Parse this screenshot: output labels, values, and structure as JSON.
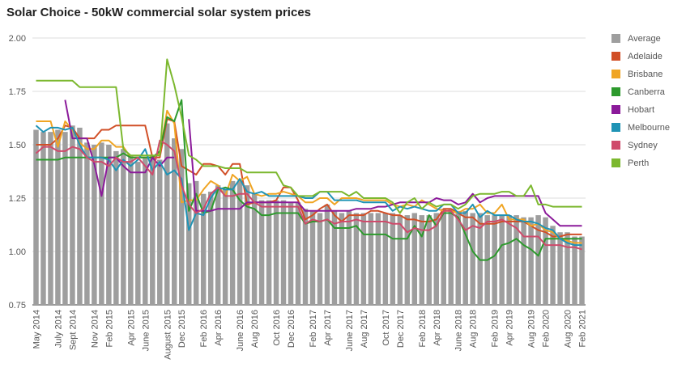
{
  "chart_data": {
    "type": "bar+line",
    "title": "Solar Choice - 50kW commercial solar system prices",
    "xlabel": "",
    "ylabel": "",
    "ylim": [
      0.75,
      2.0
    ],
    "yticks": [
      "0.75",
      "1.00",
      "1.25",
      "1.50",
      "1.75",
      "2.00"
    ],
    "grid": true,
    "legend_position": "right",
    "tick_labels": [
      "May 2014",
      "July 2014",
      "Sept 2014",
      "Nov 2014",
      "Feb 2015",
      "Apr 2015",
      "June 2015",
      "August 2015",
      "Dec 2015",
      "Feb 2016",
      "Apr 2016",
      "June 2016",
      "Aug 2016",
      "Oct 2016",
      "Dec 2016",
      "Feb 2017",
      "Apr 2017",
      "June 2017",
      "Aug 2017",
      "Oct 2017",
      "Dec 2017",
      "Feb 2018",
      "Apr 2018",
      "June 2018",
      "Aug 2018",
      "Feb 2019",
      "Apr 2019",
      "Aug 2019",
      "Feb 2020",
      "Aug 2020",
      "Feb 2021"
    ],
    "n_periods": 76,
    "series": [
      {
        "name": "Average",
        "kind": "bar",
        "color": "#9e9e9e",
        "values": [
          1.57,
          1.56,
          1.56,
          1.57,
          1.56,
          1.59,
          1.58,
          1.51,
          1.5,
          1.51,
          1.5,
          1.47,
          1.48,
          1.45,
          1.42,
          1.44,
          1.45,
          1.43,
          1.6,
          1.53,
          1.48,
          1.32,
          1.33,
          1.27,
          1.28,
          1.31,
          1.29,
          1.33,
          1.33,
          1.31,
          1.27,
          1.24,
          1.24,
          1.24,
          1.24,
          1.23,
          1.23,
          1.2,
          1.19,
          1.18,
          1.22,
          1.19,
          1.18,
          1.19,
          1.18,
          1.18,
          1.18,
          1.18,
          1.18,
          1.18,
          1.17,
          1.17,
          1.18,
          1.17,
          1.17,
          1.18,
          1.2,
          1.2,
          1.19,
          1.19,
          1.18,
          1.18,
          1.17,
          1.17,
          1.17,
          1.17,
          1.17,
          1.16,
          1.16,
          1.17,
          1.16,
          1.12,
          1.09,
          1.09,
          1.07,
          1.07
        ]
      },
      {
        "name": "Adelaide",
        "kind": "line",
        "color": "#d14f27",
        "values": [
          1.5,
          1.5,
          1.5,
          1.53,
          1.59,
          1.58,
          1.53,
          1.53,
          1.53,
          1.57,
          1.57,
          1.59,
          1.59,
          1.59,
          1.59,
          1.59,
          1.44,
          1.44,
          1.62,
          1.61,
          1.4,
          1.38,
          1.36,
          1.41,
          1.41,
          1.4,
          1.36,
          1.41,
          1.41,
          1.22,
          1.23,
          1.23,
          1.23,
          1.24,
          1.3,
          1.3,
          1.24,
          1.15,
          1.17,
          1.2,
          1.22,
          1.17,
          1.14,
          1.17,
          1.17,
          1.17,
          1.19,
          1.19,
          1.18,
          1.17,
          1.17,
          1.15,
          1.15,
          1.14,
          1.14,
          1.15,
          1.2,
          1.2,
          1.18,
          1.16,
          1.16,
          1.13,
          1.13,
          1.13,
          1.14,
          1.14,
          1.14,
          1.14,
          1.12,
          1.1,
          1.09,
          1.07,
          1.07,
          1.08,
          1.08,
          1.08
        ]
      },
      {
        "name": "Brisbane",
        "kind": "line",
        "color": "#f0a524",
        "values": [
          1.61,
          1.61,
          1.61,
          1.49,
          1.61,
          1.57,
          1.51,
          1.48,
          1.48,
          1.52,
          1.52,
          1.49,
          1.49,
          1.44,
          1.44,
          1.44,
          1.44,
          1.46,
          1.66,
          1.6,
          1.23,
          1.24,
          1.24,
          1.29,
          1.33,
          1.31,
          1.26,
          1.36,
          1.33,
          1.35,
          1.27,
          1.26,
          1.27,
          1.27,
          1.28,
          1.27,
          1.26,
          1.23,
          1.23,
          1.25,
          1.25,
          1.22,
          1.25,
          1.25,
          1.25,
          1.24,
          1.24,
          1.24,
          1.24,
          1.22,
          1.21,
          1.22,
          1.21,
          1.24,
          1.22,
          1.2,
          1.19,
          1.19,
          1.18,
          1.2,
          1.2,
          1.22,
          1.18,
          1.18,
          1.22,
          1.15,
          1.15,
          1.15,
          1.12,
          1.13,
          1.1,
          1.09,
          1.06,
          1.05,
          1.04,
          1.04
        ]
      },
      {
        "name": "Canberra",
        "kind": "line",
        "color": "#2d9a2d",
        "values": [
          1.43,
          1.43,
          1.43,
          1.43,
          1.44,
          1.44,
          1.44,
          1.44,
          1.44,
          1.44,
          1.44,
          1.44,
          1.46,
          1.44,
          1.44,
          1.44,
          1.44,
          1.47,
          1.63,
          1.61,
          1.71,
          1.19,
          1.27,
          1.18,
          1.19,
          1.29,
          1.3,
          1.29,
          1.24,
          1.21,
          1.2,
          1.17,
          1.17,
          1.18,
          1.18,
          1.18,
          1.18,
          1.13,
          1.14,
          1.14,
          1.15,
          1.11,
          1.11,
          1.11,
          1.12,
          1.08,
          1.08,
          1.08,
          1.08,
          1.06,
          1.06,
          1.06,
          1.12,
          1.07,
          1.17,
          1.12,
          1.18,
          1.18,
          1.16,
          1.08,
          1.0,
          0.96,
          0.96,
          0.98,
          1.03,
          1.04,
          1.06,
          1.03,
          1.01,
          0.98,
          1.06,
          1.06,
          1.06,
          1.06,
          1.06,
          1.06
        ]
      },
      {
        "name": "Hobart",
        "kind": "line",
        "color": "#8b1a9a",
        "values": [
          null,
          null,
          null,
          null,
          1.71,
          1.53,
          1.53,
          1.53,
          1.41,
          1.26,
          1.44,
          1.44,
          1.4,
          1.37,
          1.37,
          1.37,
          1.44,
          1.4,
          1.44,
          1.44,
          null,
          1.62,
          1.19,
          1.19,
          1.19,
          1.2,
          1.2,
          1.2,
          1.2,
          1.23,
          1.23,
          1.23,
          1.23,
          1.23,
          1.23,
          1.23,
          1.23,
          1.19,
          1.19,
          1.19,
          1.19,
          1.19,
          1.19,
          1.19,
          1.2,
          1.2,
          1.2,
          1.21,
          1.21,
          1.22,
          1.23,
          1.23,
          1.23,
          1.23,
          1.23,
          1.25,
          1.24,
          1.24,
          1.22,
          1.23,
          1.27,
          1.23,
          1.25,
          1.26,
          1.26,
          1.26,
          1.26,
          1.26,
          1.26,
          1.26,
          1.18,
          1.15,
          1.12,
          1.12,
          1.12,
          1.12
        ]
      },
      {
        "name": "Melbourne",
        "kind": "line",
        "color": "#1f93b5",
        "values": [
          1.59,
          1.56,
          1.58,
          1.58,
          1.57,
          1.58,
          1.5,
          1.44,
          1.44,
          1.44,
          1.43,
          1.38,
          1.43,
          1.4,
          1.43,
          1.48,
          1.38,
          1.42,
          1.36,
          1.38,
          1.34,
          1.1,
          1.18,
          1.17,
          1.25,
          1.3,
          1.29,
          1.29,
          1.34,
          1.28,
          1.27,
          1.28,
          1.26,
          1.26,
          1.26,
          1.26,
          1.26,
          1.25,
          1.25,
          1.28,
          1.28,
          1.24,
          1.24,
          1.24,
          1.24,
          1.23,
          1.23,
          1.23,
          1.23,
          1.19,
          1.21,
          1.2,
          1.21,
          1.2,
          1.19,
          1.19,
          1.22,
          1.22,
          1.18,
          1.18,
          1.22,
          1.16,
          1.19,
          1.17,
          1.17,
          1.17,
          1.15,
          1.14,
          1.14,
          1.13,
          1.11,
          1.1,
          1.06,
          1.04,
          1.03,
          1.03
        ]
      },
      {
        "name": "Sydney",
        "kind": "line",
        "color": "#cf4a6b",
        "values": [
          1.46,
          1.49,
          1.49,
          1.47,
          1.47,
          1.49,
          1.48,
          1.44,
          1.42,
          1.42,
          1.4,
          1.44,
          1.42,
          1.42,
          1.44,
          1.4,
          1.36,
          1.52,
          1.5,
          1.47,
          1.31,
          1.22,
          1.18,
          1.2,
          1.27,
          1.3,
          1.26,
          1.26,
          1.27,
          1.27,
          1.23,
          1.21,
          1.21,
          1.21,
          1.21,
          1.21,
          1.21,
          1.13,
          1.15,
          1.14,
          1.15,
          1.13,
          1.14,
          1.14,
          1.15,
          1.14,
          1.14,
          1.14,
          1.14,
          1.13,
          1.13,
          1.09,
          1.11,
          1.1,
          1.1,
          1.12,
          1.19,
          1.19,
          1.15,
          1.1,
          1.12,
          1.11,
          1.14,
          1.14,
          1.15,
          1.13,
          1.11,
          1.07,
          1.07,
          1.07,
          1.03,
          1.03,
          1.03,
          1.02,
          1.02,
          1.01
        ]
      },
      {
        "name": "Perth",
        "kind": "line",
        "color": "#7cb82f",
        "values": [
          1.8,
          1.8,
          1.8,
          1.8,
          1.8,
          1.8,
          1.77,
          1.77,
          1.77,
          1.77,
          1.77,
          1.77,
          1.48,
          1.45,
          1.45,
          1.45,
          1.45,
          1.45,
          1.9,
          1.78,
          1.63,
          1.45,
          1.43,
          1.4,
          1.4,
          1.4,
          1.39,
          1.39,
          1.39,
          1.37,
          1.37,
          1.37,
          1.37,
          1.37,
          1.31,
          1.3,
          1.26,
          1.26,
          1.26,
          1.28,
          1.28,
          1.28,
          1.28,
          1.26,
          1.28,
          1.25,
          1.25,
          1.25,
          1.25,
          1.23,
          1.18,
          1.23,
          1.25,
          1.2,
          1.23,
          1.21,
          1.22,
          1.22,
          1.2,
          1.22,
          1.26,
          1.27,
          1.27,
          1.27,
          1.28,
          1.28,
          1.26,
          1.26,
          1.31,
          1.22,
          1.22,
          1.21,
          1.21,
          1.21,
          1.21,
          1.21
        ]
      }
    ]
  }
}
